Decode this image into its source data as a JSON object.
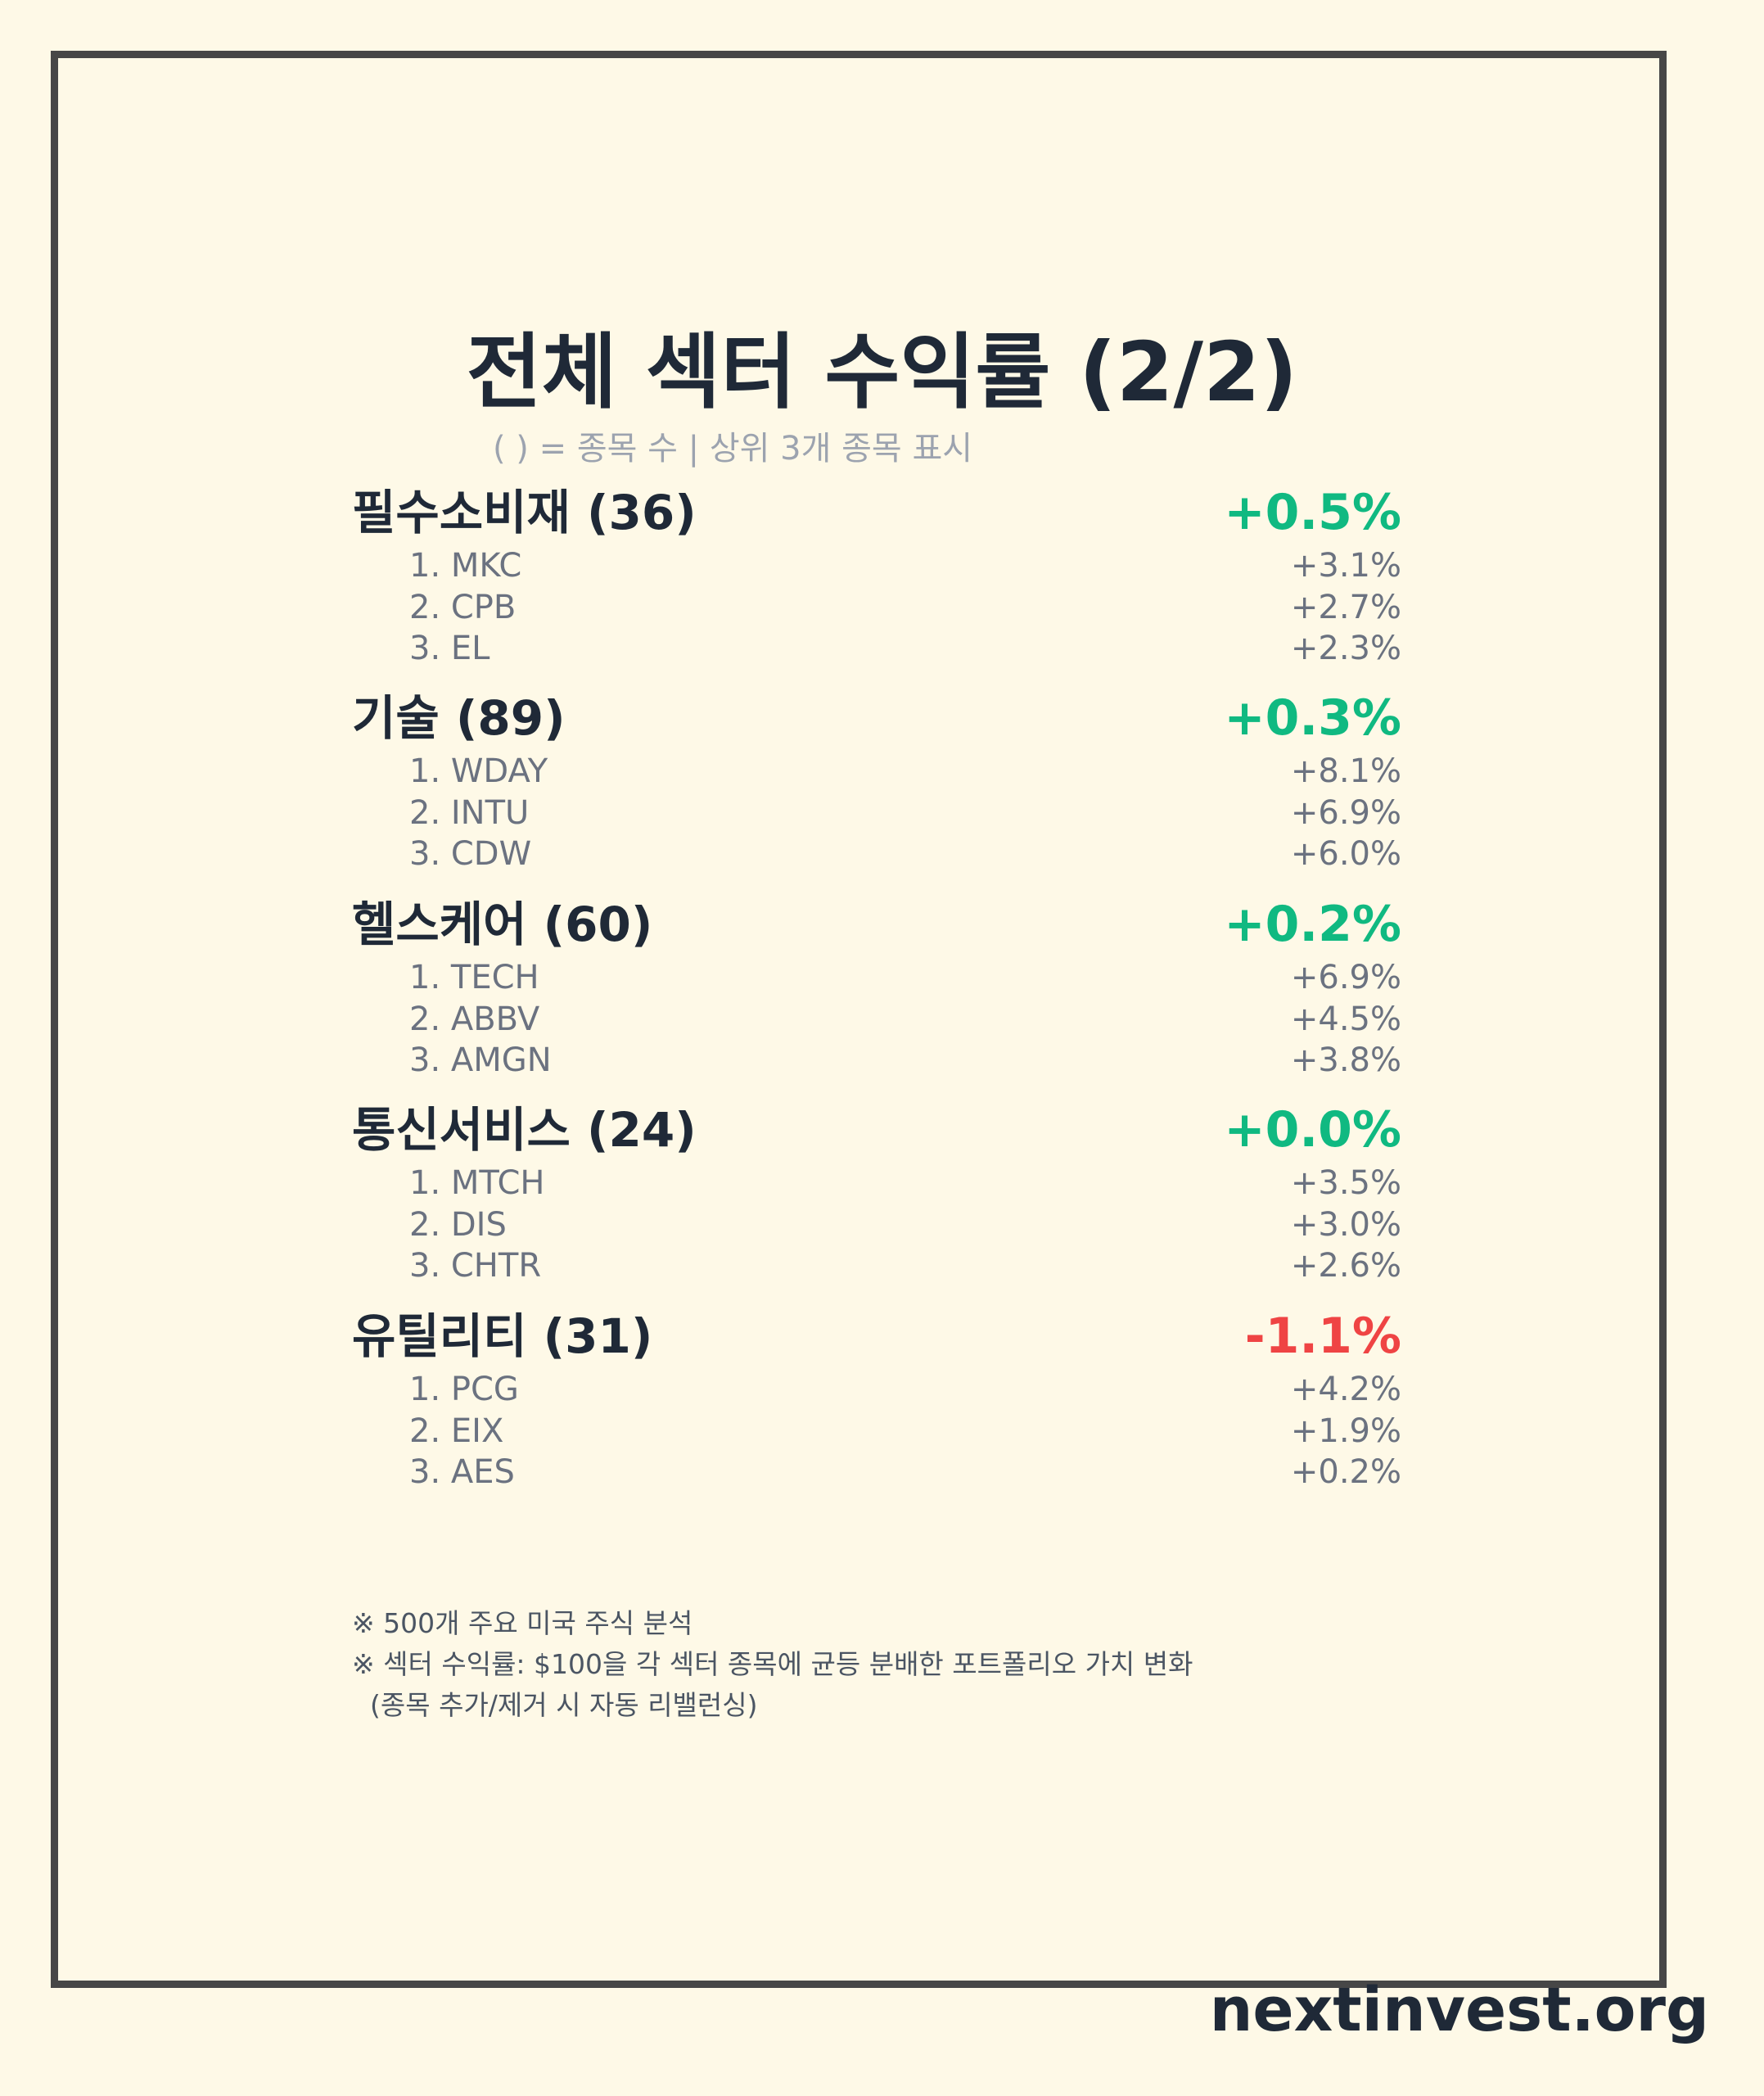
{
  "title": "전체 섹터 수익률 (2/2)",
  "subtitle": "( ) = 종목 수 | 상위 3개 종목 표시",
  "sectors": [
    {
      "name": "필수소비재 (36)",
      "return": "+0.5%",
      "sign": "pos",
      "stocks": [
        {
          "name": "1. MKC",
          "return": "+3.1%"
        },
        {
          "name": "2. CPB",
          "return": "+2.7%"
        },
        {
          "name": "3. EL",
          "return": "+2.3%"
        }
      ]
    },
    {
      "name": "기술 (89)",
      "return": "+0.3%",
      "sign": "pos",
      "stocks": [
        {
          "name": "1. WDAY",
          "return": "+8.1%"
        },
        {
          "name": "2. INTU",
          "return": "+6.9%"
        },
        {
          "name": "3. CDW",
          "return": "+6.0%"
        }
      ]
    },
    {
      "name": "헬스케어 (60)",
      "return": "+0.2%",
      "sign": "pos",
      "stocks": [
        {
          "name": "1. TECH",
          "return": "+6.9%"
        },
        {
          "name": "2. ABBV",
          "return": "+4.5%"
        },
        {
          "name": "3. AMGN",
          "return": "+3.8%"
        }
      ]
    },
    {
      "name": "통신서비스 (24)",
      "return": "+0.0%",
      "sign": "pos",
      "stocks": [
        {
          "name": "1. MTCH",
          "return": "+3.5%"
        },
        {
          "name": "2. DIS",
          "return": "+3.0%"
        },
        {
          "name": "3. CHTR",
          "return": "+2.6%"
        }
      ]
    },
    {
      "name": "유틸리티 (31)",
      "return": "-1.1%",
      "sign": "neg",
      "stocks": [
        {
          "name": "1. PCG",
          "return": "+4.2%"
        },
        {
          "name": "2. EIX",
          "return": "+1.9%"
        },
        {
          "name": "3. AES",
          "return": "+0.2%"
        }
      ]
    }
  ],
  "notes": [
    "※ 500개 주요 미국 주식 분석",
    "※ 섹터 수익률: $100을 각 섹터 종목에 균등 분배한 포트폴리오 가치 변화",
    "(종목 추가/제거 시 자동 리밸런싱)"
  ],
  "brand": "nextinvest.org",
  "colors": {
    "background": "#fef9e7",
    "frame": "#474747",
    "positive": "#10b981",
    "negative": "#ef4444",
    "title": "#1f2937",
    "muted": "#6b7280"
  }
}
